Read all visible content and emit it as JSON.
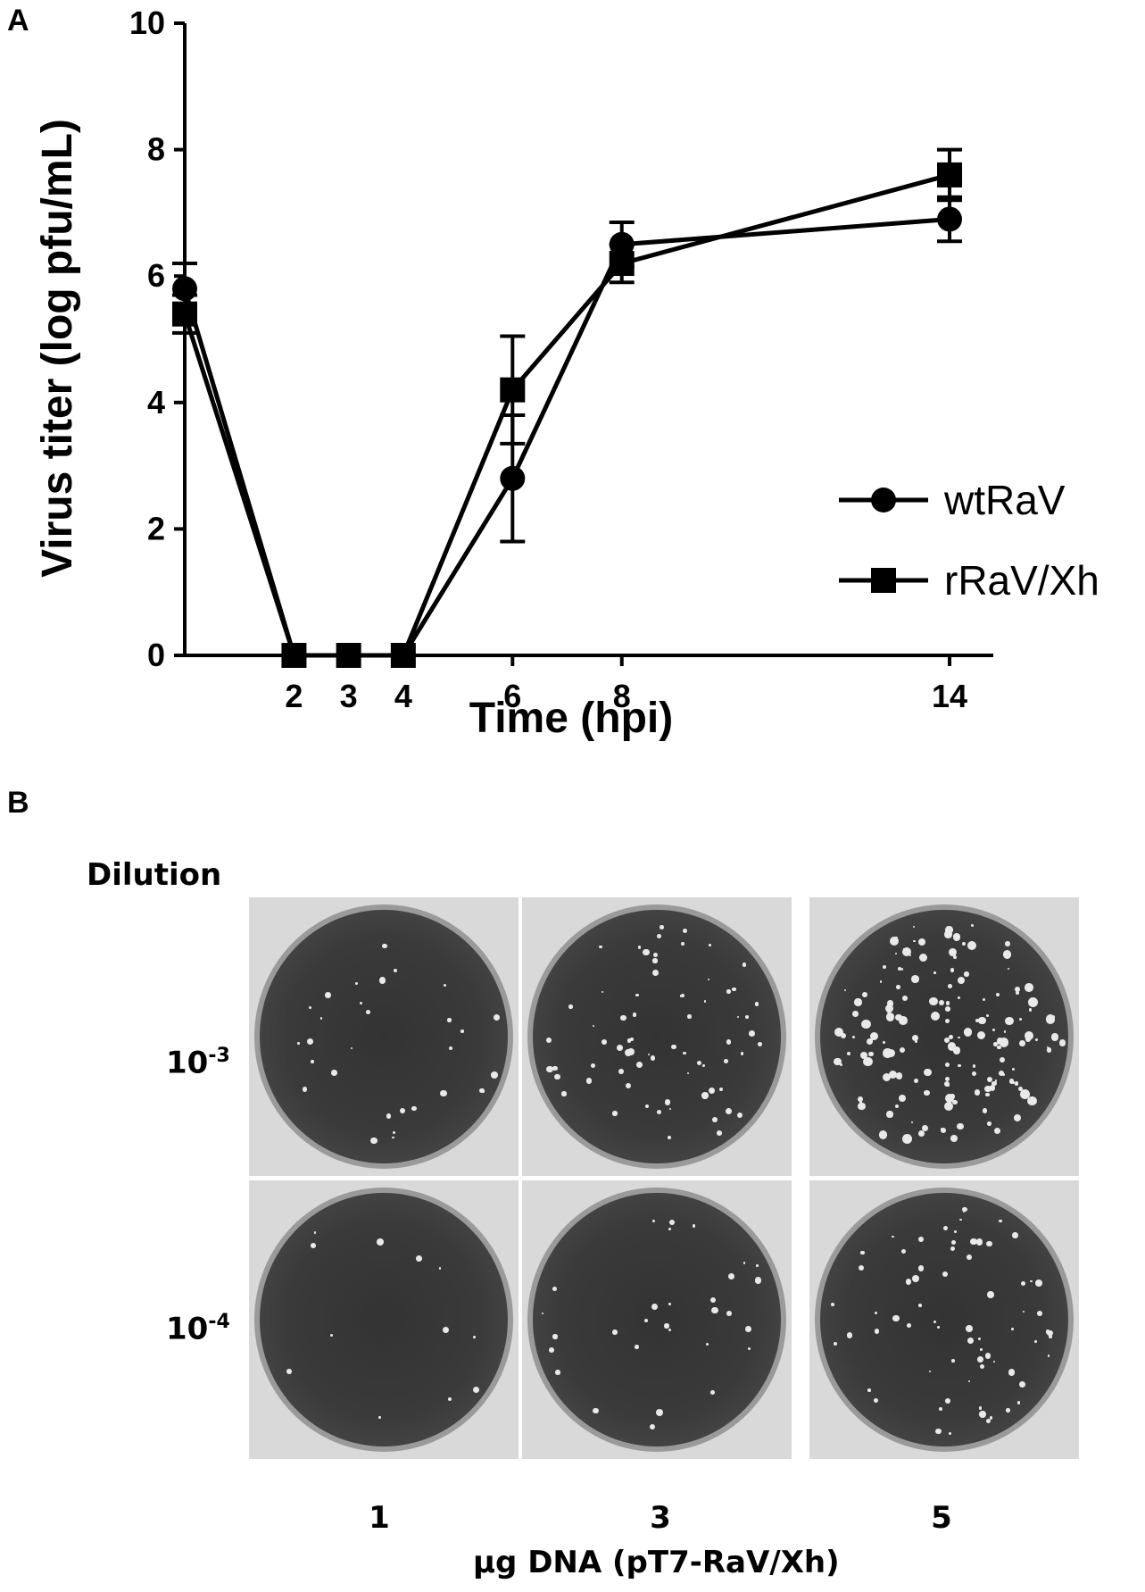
{
  "panel_a_label": "A",
  "panel_b_label": "B",
  "chart_data": {
    "type": "line",
    "xlabel": "Time (hpi)",
    "ylabel": "Virus titer (log pfu/mL)",
    "xlim": [
      0,
      14.8
    ],
    "ylim": [
      0,
      10
    ],
    "x_ticks": [
      2,
      3,
      4,
      6,
      8,
      14
    ],
    "y_ticks": [
      0,
      2,
      4,
      6,
      8,
      10
    ],
    "legend_position": "right",
    "series": [
      {
        "name": "wtRaV",
        "marker": "circle",
        "x": [
          0,
          2,
          3,
          4,
          6,
          8,
          14
        ],
        "y": [
          5.8,
          0,
          0,
          0,
          2.8,
          6.5,
          6.9
        ],
        "err": [
          0.4,
          0,
          0,
          0,
          1.0,
          0.35,
          0.35
        ]
      },
      {
        "name": "rRaV/Xh",
        "marker": "square",
        "x": [
          0,
          2,
          3,
          4,
          6,
          8,
          14
        ],
        "y": [
          5.4,
          0,
          0,
          0,
          4.2,
          6.2,
          7.6
        ],
        "err": [
          0.3,
          0,
          0,
          0,
          0.85,
          0.3,
          0.4
        ]
      }
    ]
  },
  "panel_b": {
    "dilution_header": "Dilution",
    "rows": [
      {
        "base": "10",
        "exp": "-3"
      },
      {
        "base": "10",
        "exp": "-4"
      }
    ],
    "columns": [
      "1",
      "3",
      "5"
    ],
    "xlabel": "μg DNA (pT7-RaV/Xh)"
  }
}
